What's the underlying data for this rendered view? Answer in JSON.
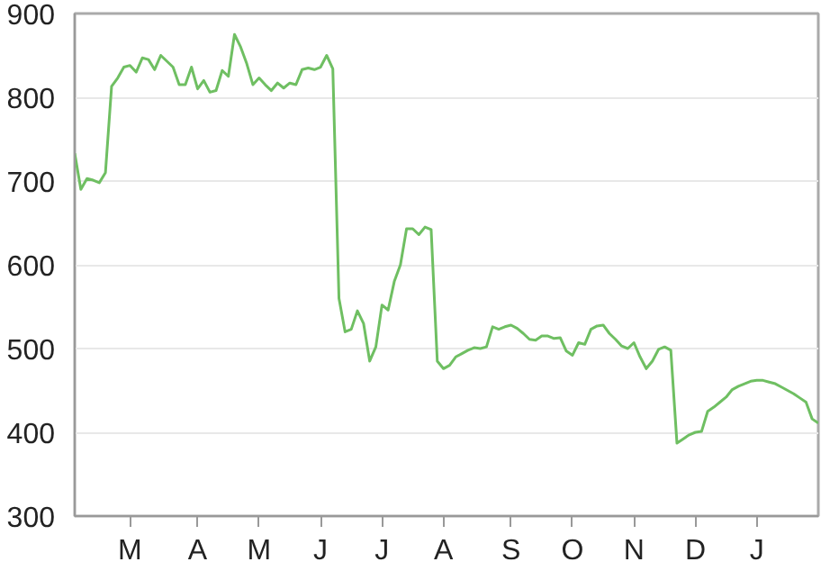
{
  "chart_data": {
    "type": "line",
    "grid": "y",
    "ylim": [
      300,
      900
    ],
    "yticks": [
      300,
      400,
      500,
      600,
      700,
      800,
      900
    ],
    "categories": [
      null,
      null,
      null,
      null,
      null,
      null,
      null,
      null,
      null,
      "M",
      null,
      null,
      null,
      null,
      null,
      null,
      null,
      null,
      null,
      null,
      "A",
      null,
      null,
      null,
      null,
      null,
      null,
      null,
      null,
      null,
      "M",
      null,
      null,
      null,
      null,
      null,
      null,
      null,
      null,
      null,
      "J",
      null,
      null,
      null,
      null,
      null,
      null,
      null,
      null,
      null,
      "J",
      null,
      null,
      null,
      null,
      null,
      null,
      null,
      null,
      null,
      "A",
      null,
      null,
      null,
      null,
      null,
      null,
      null,
      null,
      null,
      null,
      "S",
      null,
      null,
      null,
      null,
      null,
      null,
      null,
      null,
      null,
      "O",
      null,
      null,
      null,
      null,
      null,
      null,
      null,
      null,
      null,
      "N",
      null,
      null,
      null,
      null,
      null,
      null,
      null,
      null,
      null,
      "D",
      null,
      null,
      null,
      null,
      null,
      null,
      null,
      null,
      null,
      "J",
      null,
      null,
      null,
      null,
      null,
      null,
      null,
      null,
      null,
      null
    ],
    "series": [
      {
        "color": "#6fbf62",
        "values": [
          733,
          690,
          703,
          701,
          698,
          710,
          813,
          823,
          836,
          838,
          830,
          847,
          845,
          833,
          850,
          843,
          836,
          815,
          815,
          836,
          810,
          820,
          806,
          808,
          832,
          825,
          875,
          860,
          840,
          815,
          823,
          815,
          808,
          817,
          811,
          817,
          815,
          833,
          835,
          833,
          836,
          850,
          834,
          560,
          520,
          523,
          545,
          530,
          485,
          502,
          552,
          546,
          580,
          600,
          643,
          643,
          636,
          645,
          642,
          485,
          476,
          480,
          490,
          494,
          498,
          501,
          500,
          502,
          526,
          523,
          526,
          528,
          524,
          518,
          511,
          510,
          515,
          515,
          512,
          513,
          497,
          492,
          507,
          505,
          523,
          527,
          528,
          518,
          511,
          503,
          500,
          507,
          490,
          476,
          485,
          499,
          502,
          498,
          387,
          392,
          397,
          400,
          401,
          425,
          430,
          436,
          442,
          451,
          455,
          458,
          461,
          462,
          462,
          460,
          458,
          454,
          450,
          446,
          441,
          436,
          416,
          411
        ]
      }
    ]
  }
}
